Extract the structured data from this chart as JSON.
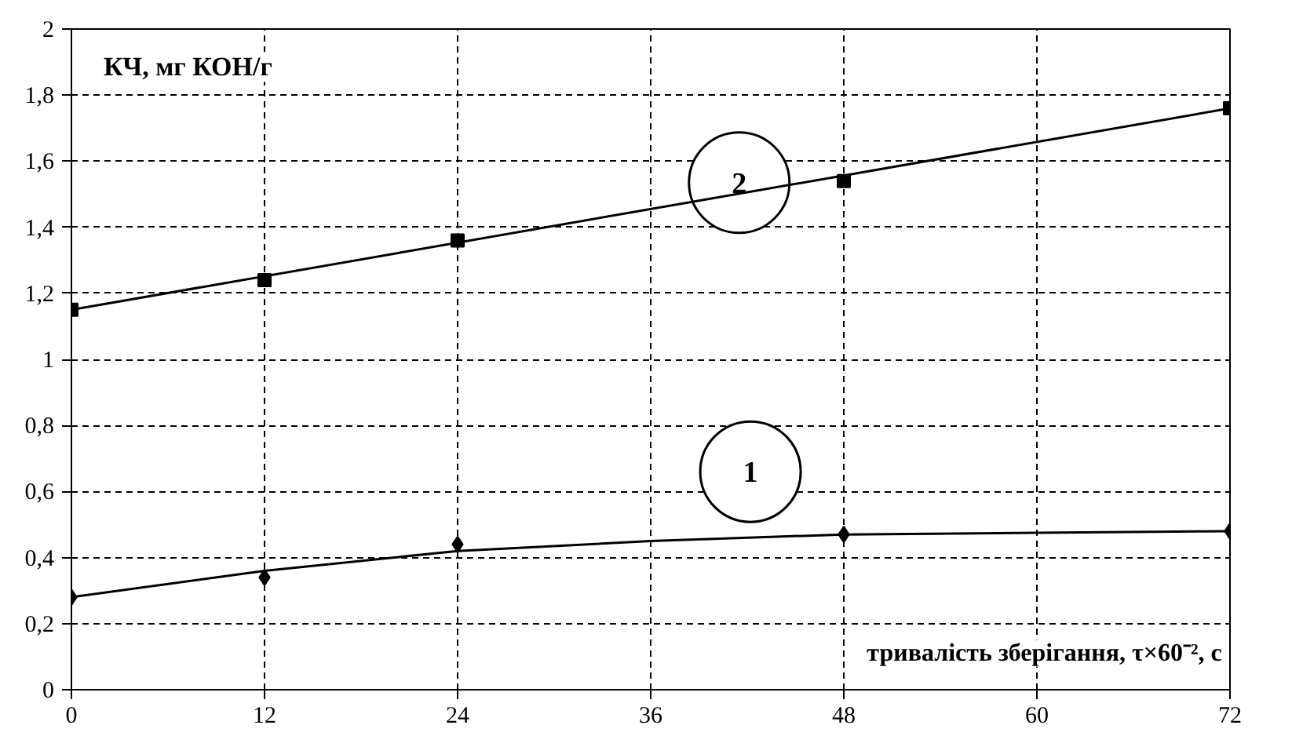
{
  "chart_data": {
    "type": "scatter",
    "xlabel": "тривалість зберігання, τ×60⁻², с",
    "ylabel": "КЧ, мг КОН/г",
    "xlim": [
      0,
      72
    ],
    "xticks": [
      0,
      12,
      24,
      36,
      48,
      60,
      72
    ],
    "ylim": [
      0,
      2
    ],
    "yticks": [
      {
        "value": 0,
        "label": "0"
      },
      {
        "value": 0.2,
        "label": "0,2"
      },
      {
        "value": 0.4,
        "label": "0,4"
      },
      {
        "value": 0.6,
        "label": "0,6"
      },
      {
        "value": 0.8,
        "label": "0,8"
      },
      {
        "value": 1,
        "label": "1"
      },
      {
        "value": 1.2,
        "label": "1,2"
      },
      {
        "value": 1.4,
        "label": "1,4"
      },
      {
        "value": 1.6,
        "label": "1,6"
      },
      {
        "value": 1.8,
        "label": "1,8"
      },
      {
        "value": 2,
        "label": "2"
      }
    ],
    "grid": true,
    "series": [
      {
        "name": "1",
        "marker": "diamond",
        "color": "#000000",
        "x": [
          0,
          12,
          24,
          48,
          72
        ],
        "values": [
          0.28,
          0.34,
          0.44,
          0.47,
          0.48
        ]
      },
      {
        "type": "line",
        "marker": "none",
        "color": "#000000",
        "x": [
          0,
          12,
          24,
          36,
          48,
          60,
          72
        ],
        "values": [
          0.28,
          0.36,
          0.42,
          0.45,
          0.47,
          0.475,
          0.48
        ]
      },
      {
        "name": "2",
        "marker": "square",
        "color": "#000000",
        "x": [
          0,
          12,
          24,
          48,
          72
        ],
        "values": [
          1.15,
          1.24,
          1.36,
          1.54,
          1.76
        ]
      },
      {
        "type": "line",
        "marker": "none",
        "color": "#000000",
        "x": [
          0,
          72
        ],
        "values": [
          1.15,
          1.76
        ]
      }
    ]
  }
}
